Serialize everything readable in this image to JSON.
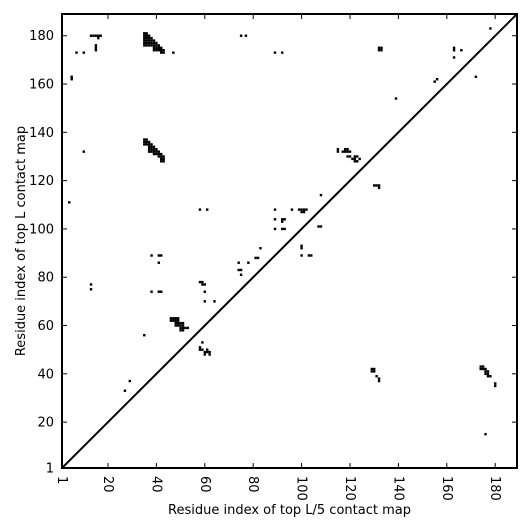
{
  "chart_data": {
    "type": "scatter",
    "title": "",
    "xlabel": "Residue index of top L/5 contact map",
    "ylabel": "Residue index of top L contact map",
    "xlim": [
      1,
      189
    ],
    "ylim": [
      1,
      189
    ],
    "xticks": [
      1,
      20,
      40,
      60,
      80,
      100,
      120,
      140,
      160,
      180
    ],
    "yticks": [
      1,
      20,
      40,
      60,
      80,
      100,
      120,
      140,
      160,
      180
    ],
    "grid": false,
    "diagonal": {
      "from": [
        1,
        1
      ],
      "to": [
        189,
        189
      ]
    },
    "series": [
      {
        "marker": "square",
        "color": "#000000",
        "points": [
          [
            35,
            181
          ],
          [
            36,
            181
          ],
          [
            35,
            180
          ],
          [
            36,
            180
          ],
          [
            37,
            180
          ],
          [
            35,
            179
          ],
          [
            36,
            179
          ],
          [
            37,
            179
          ],
          [
            38,
            179
          ],
          [
            35,
            178
          ],
          [
            36,
            178
          ],
          [
            37,
            178
          ],
          [
            38,
            178
          ],
          [
            39,
            178
          ],
          [
            35,
            177
          ],
          [
            36,
            177
          ],
          [
            37,
            177
          ],
          [
            38,
            177
          ],
          [
            39,
            177
          ],
          [
            40,
            177
          ],
          [
            35,
            176
          ],
          [
            36,
            176
          ],
          [
            37,
            176
          ],
          [
            38,
            176
          ],
          [
            39,
            176
          ],
          [
            40,
            176
          ],
          [
            41,
            176
          ],
          [
            39,
            175
          ],
          [
            40,
            175
          ],
          [
            41,
            175
          ],
          [
            42,
            175
          ],
          [
            39,
            174
          ],
          [
            40,
            174
          ],
          [
            41,
            174
          ],
          [
            42,
            174
          ],
          [
            43,
            174
          ],
          [
            42,
            173
          ],
          [
            43,
            173
          ],
          [
            47,
            173
          ],
          [
            7,
            173
          ],
          [
            10,
            173
          ],
          [
            13,
            180
          ],
          [
            14,
            180
          ],
          [
            15,
            180
          ],
          [
            16,
            180
          ],
          [
            17,
            180
          ],
          [
            16,
            179
          ],
          [
            15,
            176
          ],
          [
            15,
            175
          ],
          [
            15,
            174
          ],
          [
            5,
            163
          ],
          [
            5,
            162
          ],
          [
            75,
            180
          ],
          [
            77,
            180
          ],
          [
            89,
            173
          ],
          [
            92,
            173
          ],
          [
            132,
            175
          ],
          [
            133,
            175
          ],
          [
            132,
            174
          ],
          [
            133,
            174
          ],
          [
            163,
            175
          ],
          [
            163,
            174
          ],
          [
            163,
            171
          ],
          [
            166,
            174
          ],
          [
            178,
            183
          ],
          [
            156,
            162
          ],
          [
            155,
            161
          ],
          [
            172,
            163
          ],
          [
            139,
            154
          ],
          [
            35,
            137
          ],
          [
            36,
            137
          ],
          [
            35,
            136
          ],
          [
            36,
            136
          ],
          [
            37,
            136
          ],
          [
            35,
            135
          ],
          [
            36,
            135
          ],
          [
            37,
            135
          ],
          [
            38,
            135
          ],
          [
            37,
            134
          ],
          [
            38,
            134
          ],
          [
            39,
            134
          ],
          [
            37,
            133
          ],
          [
            38,
            133
          ],
          [
            39,
            133
          ],
          [
            40,
            133
          ],
          [
            37,
            132
          ],
          [
            38,
            132
          ],
          [
            39,
            132
          ],
          [
            40,
            132
          ],
          [
            41,
            132
          ],
          [
            39,
            131
          ],
          [
            40,
            131
          ],
          [
            41,
            131
          ],
          [
            42,
            131
          ],
          [
            41,
            130
          ],
          [
            42,
            130
          ],
          [
            43,
            130
          ],
          [
            42,
            129
          ],
          [
            43,
            129
          ],
          [
            42,
            128
          ],
          [
            43,
            128
          ],
          [
            10,
            132
          ],
          [
            115,
            133
          ],
          [
            115,
            132
          ],
          [
            118,
            133
          ],
          [
            119,
            133
          ],
          [
            117,
            132
          ],
          [
            118,
            132
          ],
          [
            119,
            132
          ],
          [
            120,
            132
          ],
          [
            119,
            130
          ],
          [
            120,
            130
          ],
          [
            122,
            130
          ],
          [
            123,
            130
          ],
          [
            121,
            129
          ],
          [
            122,
            129
          ],
          [
            124,
            129
          ],
          [
            122,
            128
          ],
          [
            123,
            128
          ],
          [
            130,
            118
          ],
          [
            131,
            118
          ],
          [
            132,
            118
          ],
          [
            132,
            117
          ],
          [
            4,
            111
          ],
          [
            108,
            114
          ],
          [
            58,
            108
          ],
          [
            61,
            108
          ],
          [
            89,
            108
          ],
          [
            96,
            108
          ],
          [
            99,
            108
          ],
          [
            100,
            108
          ],
          [
            101,
            108
          ],
          [
            102,
            108
          ],
          [
            100,
            107
          ],
          [
            101,
            107
          ],
          [
            89,
            104
          ],
          [
            92,
            104
          ],
          [
            93,
            104
          ],
          [
            92,
            103
          ],
          [
            89,
            100
          ],
          [
            92,
            100
          ],
          [
            93,
            100
          ],
          [
            107,
            101
          ],
          [
            108,
            101
          ],
          [
            100,
            93
          ],
          [
            100,
            92
          ],
          [
            100,
            89
          ],
          [
            103,
            89
          ],
          [
            104,
            89
          ],
          [
            83,
            92
          ],
          [
            81,
            88
          ],
          [
            82,
            88
          ],
          [
            38,
            89
          ],
          [
            41,
            89
          ],
          [
            42,
            89
          ],
          [
            41,
            86
          ],
          [
            74,
            86
          ],
          [
            78,
            86
          ],
          [
            74,
            83
          ],
          [
            75,
            83
          ],
          [
            75,
            81
          ],
          [
            58,
            78
          ],
          [
            59,
            78
          ],
          [
            59,
            77
          ],
          [
            60,
            77
          ],
          [
            13,
            77
          ],
          [
            13,
            75
          ],
          [
            38,
            74
          ],
          [
            41,
            74
          ],
          [
            42,
            74
          ],
          [
            60,
            74
          ],
          [
            60,
            70
          ],
          [
            64,
            70
          ],
          [
            46,
            63
          ],
          [
            47,
            63
          ],
          [
            48,
            63
          ],
          [
            49,
            63
          ],
          [
            47,
            62
          ],
          [
            48,
            62
          ],
          [
            49,
            62
          ],
          [
            46,
            62
          ],
          [
            48,
            61
          ],
          [
            49,
            61
          ],
          [
            50,
            61
          ],
          [
            51,
            61
          ],
          [
            48,
            60
          ],
          [
            49,
            60
          ],
          [
            50,
            60
          ],
          [
            51,
            60
          ],
          [
            50,
            59
          ],
          [
            51,
            59
          ],
          [
            52,
            59
          ],
          [
            53,
            59
          ],
          [
            50,
            58
          ],
          [
            51,
            58
          ],
          [
            35,
            56
          ],
          [
            59,
            53
          ],
          [
            58,
            51
          ],
          [
            58,
            50
          ],
          [
            59,
            50
          ],
          [
            61,
            50
          ],
          [
            60,
            49
          ],
          [
            61,
            49
          ],
          [
            62,
            49
          ],
          [
            60,
            48
          ],
          [
            62,
            48
          ],
          [
            129,
            42
          ],
          [
            130,
            42
          ],
          [
            129,
            41
          ],
          [
            130,
            41
          ],
          [
            131,
            39
          ],
          [
            132,
            38
          ],
          [
            132,
            37
          ],
          [
            174,
            43
          ],
          [
            175,
            43
          ],
          [
            174,
            42
          ],
          [
            175,
            42
          ],
          [
            176,
            42
          ],
          [
            176,
            41
          ],
          [
            177,
            41
          ],
          [
            176,
            40
          ],
          [
            177,
            40
          ],
          [
            177,
            39
          ],
          [
            178,
            39
          ],
          [
            180,
            36
          ],
          [
            180,
            35
          ],
          [
            29,
            37
          ],
          [
            27,
            33
          ],
          [
            176,
            15
          ]
        ]
      }
    ]
  }
}
